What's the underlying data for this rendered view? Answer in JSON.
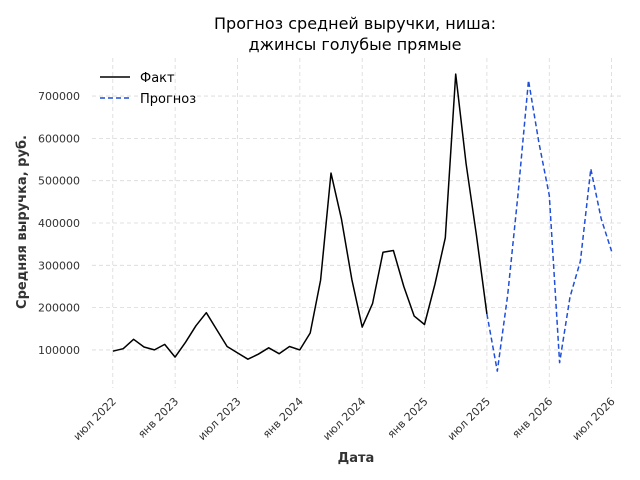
{
  "chart_data": {
    "type": "line",
    "title": "Прогноз средней выручки, ниша:",
    "subtitle": "джинсы голубые прямые",
    "xlabel": "Дата",
    "ylabel": "Средняя выручка, руб.",
    "x_tick_labels": [
      "июл 2022",
      "янв 2023",
      "июл 2023",
      "янв 2024",
      "июл 2024",
      "янв 2025",
      "июл 2025",
      "янв 2026",
      "июл 2026"
    ],
    "y_ticks": [
      100000,
      200000,
      300000,
      400000,
      500000,
      600000,
      700000
    ],
    "y_tick_labels": [
      "100000",
      "200000",
      "300000",
      "400000",
      "500000",
      "600000",
      "700000"
    ],
    "ylim": [
      10000,
      790000
    ],
    "xlim": [
      "2022-05",
      "2026-08"
    ],
    "grid": true,
    "legend_position": "top-left",
    "series": [
      {
        "name": "Факт",
        "color": "#000000",
        "style": "solid",
        "x": [
          "2022-07",
          "2022-08",
          "2022-09",
          "2022-10",
          "2022-11",
          "2022-12",
          "2023-01",
          "2023-02",
          "2023-03",
          "2023-04",
          "2023-05",
          "2023-06",
          "2023-07",
          "2023-08",
          "2023-09",
          "2023-10",
          "2023-11",
          "2023-12",
          "2024-01",
          "2024-02",
          "2024-03",
          "2024-04",
          "2024-05",
          "2024-06",
          "2024-07",
          "2024-08",
          "2024-09",
          "2024-10",
          "2024-11",
          "2024-12",
          "2025-01",
          "2025-02",
          "2025-03",
          "2025-04",
          "2025-05",
          "2025-06",
          "2025-07"
        ],
        "values": [
          97000,
          103000,
          125000,
          107000,
          100000,
          113000,
          83000,
          118000,
          157000,
          188000,
          148000,
          108000,
          93000,
          78000,
          90000,
          105000,
          91000,
          108000,
          100000,
          140000,
          265000,
          518000,
          410000,
          267000,
          154000,
          210000,
          331000,
          335000,
          250000,
          180000,
          160000,
          255000,
          365000,
          752000,
          540000,
          370000,
          185000
        ]
      },
      {
        "name": "Прогноз",
        "color": "#1f4fd9",
        "style": "dashed",
        "x": [
          "2025-07",
          "2025-08",
          "2025-09",
          "2025-10",
          "2025-11",
          "2025-12",
          "2026-01",
          "2026-02",
          "2026-03",
          "2026-04",
          "2026-05",
          "2026-06",
          "2026-07"
        ],
        "values": [
          185000,
          50000,
          230000,
          470000,
          737000,
          590000,
          465000,
          70000,
          225000,
          310000,
          528000,
          410000,
          333000
        ]
      }
    ]
  }
}
